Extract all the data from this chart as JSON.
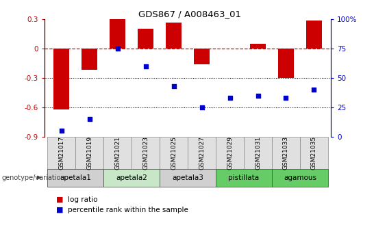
{
  "title": "GDS867 / A008463_01",
  "categories": [
    "GSM21017",
    "GSM21019",
    "GSM21021",
    "GSM21023",
    "GSM21025",
    "GSM21027",
    "GSM21029",
    "GSM21031",
    "GSM21033",
    "GSM21035"
  ],
  "log_ratio": [
    -0.62,
    -0.22,
    0.3,
    0.2,
    0.26,
    -0.16,
    -0.005,
    0.05,
    -0.3,
    0.28
  ],
  "percentile_rank": [
    5,
    15,
    75,
    60,
    43,
    25,
    33,
    35,
    33,
    40
  ],
  "bar_color": "#cc0000",
  "dot_color": "#0000cc",
  "ylim_left": [
    -0.9,
    0.3
  ],
  "ylim_right": [
    0,
    100
  ],
  "yticks_left": [
    -0.9,
    -0.6,
    -0.3,
    0.0,
    0.3
  ],
  "ytick_labels_left": [
    "-0.9",
    "-0.6",
    "-0.3",
    "0",
    "0.3"
  ],
  "yticks_right": [
    0,
    25,
    50,
    75,
    100
  ],
  "ytick_labels_right": [
    "0",
    "25",
    "50",
    "75",
    "100%"
  ],
  "hlines": [
    -0.3,
    -0.6
  ],
  "groups": [
    {
      "label": "apetala1",
      "start": 0,
      "end": 2,
      "color": "#d0d0d0"
    },
    {
      "label": "apetala2",
      "start": 2,
      "end": 4,
      "color": "#c8e6c8"
    },
    {
      "label": "apetala3",
      "start": 4,
      "end": 6,
      "color": "#d0d0d0"
    },
    {
      "label": "pistillata",
      "start": 6,
      "end": 8,
      "color": "#66cc66"
    },
    {
      "label": "agamous",
      "start": 8,
      "end": 10,
      "color": "#66cc66"
    }
  ],
  "legend_bar_label": "log ratio",
  "legend_dot_label": "percentile rank within the sample",
  "genotype_label": "genotype/variation",
  "background_color": "#ffffff",
  "plot_bg_color": "#ffffff"
}
